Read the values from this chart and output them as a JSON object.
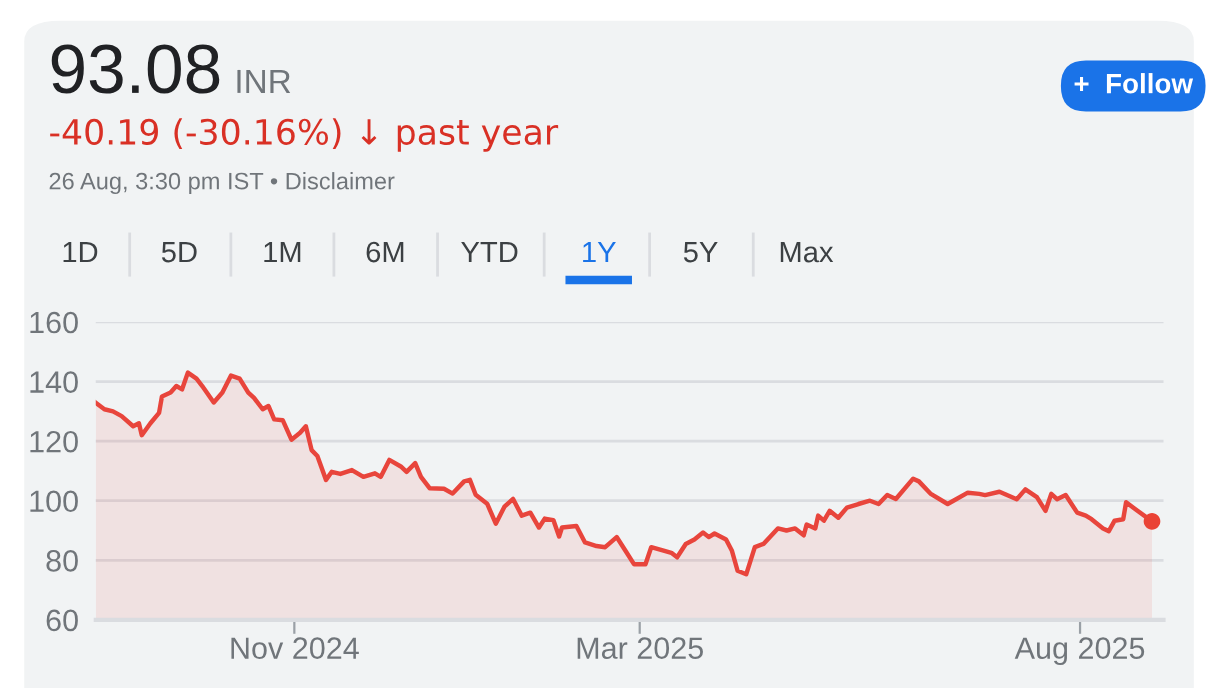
{
  "chart_data": {
    "type": "area",
    "title": "93.08",
    "subtitle": "-40.19 (-30.16%) ↓ past year",
    "annotations": [
      "INR",
      "26 Aug, 3:30 pm IST • Disclaimer",
      "+  Follow",
      "1D",
      "5D",
      "1M",
      "6M",
      "YTD",
      "1Y",
      "5Y",
      "Max"
    ],
    "x": [
      "2024-08-24",
      "2024-08-27",
      "2024-08-30",
      "2024-09-02",
      "2024-09-06",
      "2024-09-08",
      "2024-09-09",
      "2024-09-12",
      "2024-09-15",
      "2024-09-16",
      "2024-09-19",
      "2024-09-21",
      "2024-09-23",
      "2024-09-25",
      "2024-09-28",
      "2024-09-30",
      "2024-10-04",
      "2024-10-07",
      "2024-10-10",
      "2024-10-13",
      "2024-10-16",
      "2024-10-18",
      "2024-10-21",
      "2024-10-23",
      "2024-10-25",
      "2024-10-28",
      "2024-10-31",
      "2024-11-03",
      "2024-11-05",
      "2024-11-07",
      "2024-11-09",
      "2024-11-12",
      "2024-11-14",
      "2024-11-17",
      "2024-11-21",
      "2024-11-25",
      "2024-11-29",
      "2024-12-01",
      "2024-12-04",
      "2024-12-08",
      "2024-12-10",
      "2024-12-13",
      "2024-12-15",
      "2024-12-18",
      "2024-12-23",
      "2024-12-26",
      "2024-12-30",
      "2025-01-01",
      "2025-01-03",
      "2025-01-07",
      "2025-01-10",
      "2025-01-13",
      "2025-01-16",
      "2025-01-19",
      "2025-01-22",
      "2025-01-25",
      "2025-01-27",
      "2025-01-30",
      "2025-02-01",
      "2025-02-02",
      "2025-02-07",
      "2025-02-10",
      "2025-02-14",
      "2025-02-17",
      "2025-02-21",
      "2025-02-24",
      "2025-02-27",
      "2025-03-03",
      "2025-03-05",
      "2025-03-09",
      "2025-03-12",
      "2025-03-14",
      "2025-03-17",
      "2025-03-20",
      "2025-03-23",
      "2025-03-25",
      "2025-03-27",
      "2025-03-31",
      "2025-04-02",
      "2025-04-04",
      "2025-04-07",
      "2025-04-10",
      "2025-04-13",
      "2025-04-18",
      "2025-04-21",
      "2025-04-24",
      "2025-04-27",
      "2025-04-28",
      "2025-05-01",
      "2025-05-02",
      "2025-05-04",
      "2025-05-06",
      "2025-05-09",
      "2025-05-12",
      "2025-05-16",
      "2025-05-20",
      "2025-05-23",
      "2025-05-26",
      "2025-05-29",
      "2025-06-04",
      "2025-06-06",
      "2025-06-10",
      "2025-06-16",
      "2025-06-18",
      "2025-06-23",
      "2025-06-27",
      "2025-06-29",
      "2025-07-04",
      "2025-07-10",
      "2025-07-13",
      "2025-07-17",
      "2025-07-20",
      "2025-07-22",
      "2025-07-24",
      "2025-07-27",
      "2025-07-31",
      "2025-08-03",
      "2025-08-05",
      "2025-08-09",
      "2025-08-11",
      "2025-08-13",
      "2025-08-16",
      "2025-08-17",
      "2025-08-20",
      "2025-08-26"
    ],
    "series": [
      {
        "color": "#e8453c",
        "values": [
          132.9,
          130.7,
          130,
          128.4,
          125,
          126,
          122,
          126,
          129.5,
          135,
          136.3,
          138.5,
          137.4,
          143,
          141,
          138.5,
          133,
          136.3,
          142,
          141,
          136.3,
          134.5,
          130.7,
          131.8,
          127.3,
          127,
          120.5,
          122.8,
          125,
          117,
          115,
          107,
          109.7,
          109,
          110.3,
          108,
          109.2,
          108,
          113.7,
          111.5,
          109.7,
          112.6,
          108,
          104.2,
          104,
          102.4,
          106.5,
          107,
          102,
          99,
          92.3,
          98,
          100.6,
          95,
          96,
          91,
          94,
          93.5,
          88,
          91,
          91.5,
          86,
          84.8,
          84.4,
          87.8,
          83.3,
          78.7,
          78.7,
          84.4,
          83.3,
          82.5,
          81,
          85.5,
          87,
          89.3,
          87.8,
          89,
          87,
          83.3,
          76.5,
          75.3,
          84.4,
          85.5,
          90.7,
          90,
          90.7,
          88.4,
          92,
          90.7,
          95,
          93.3,
          96.6,
          94.3,
          97.7,
          98.9,
          100,
          98.9,
          101.9,
          100.6,
          107.4,
          106.5,
          102.4,
          98.9,
          100,
          102.7,
          102.3,
          101.9,
          103,
          100.5,
          103.8,
          101.2,
          96.6,
          102.3,
          100.5,
          101.9,
          96,
          95,
          93.8,
          90.7,
          89.8,
          93.3,
          93.8,
          99.5,
          97.3,
          93.08
        ]
      },
      {
        "type": "scatter",
        "color": "#ea4335",
        "marker": "circle",
        "x": [
          "2025-08-26"
        ],
        "values": [
          93.08
        ]
      }
    ],
    "xlim": [
      "2024-08-24",
      "2025-08-30"
    ],
    "xticks": [
      {
        "value": "2024-11-01",
        "label": "Nov 2024"
      },
      {
        "value": "2025-03-01",
        "label": "Mar 2025"
      },
      {
        "value": "2025-08-01",
        "label": "Aug 2025"
      }
    ],
    "ylim": [
      60,
      160
    ],
    "yticks": [
      60,
      80,
      100,
      120,
      140,
      160
    ],
    "grid": "y",
    "legend": false
  }
}
